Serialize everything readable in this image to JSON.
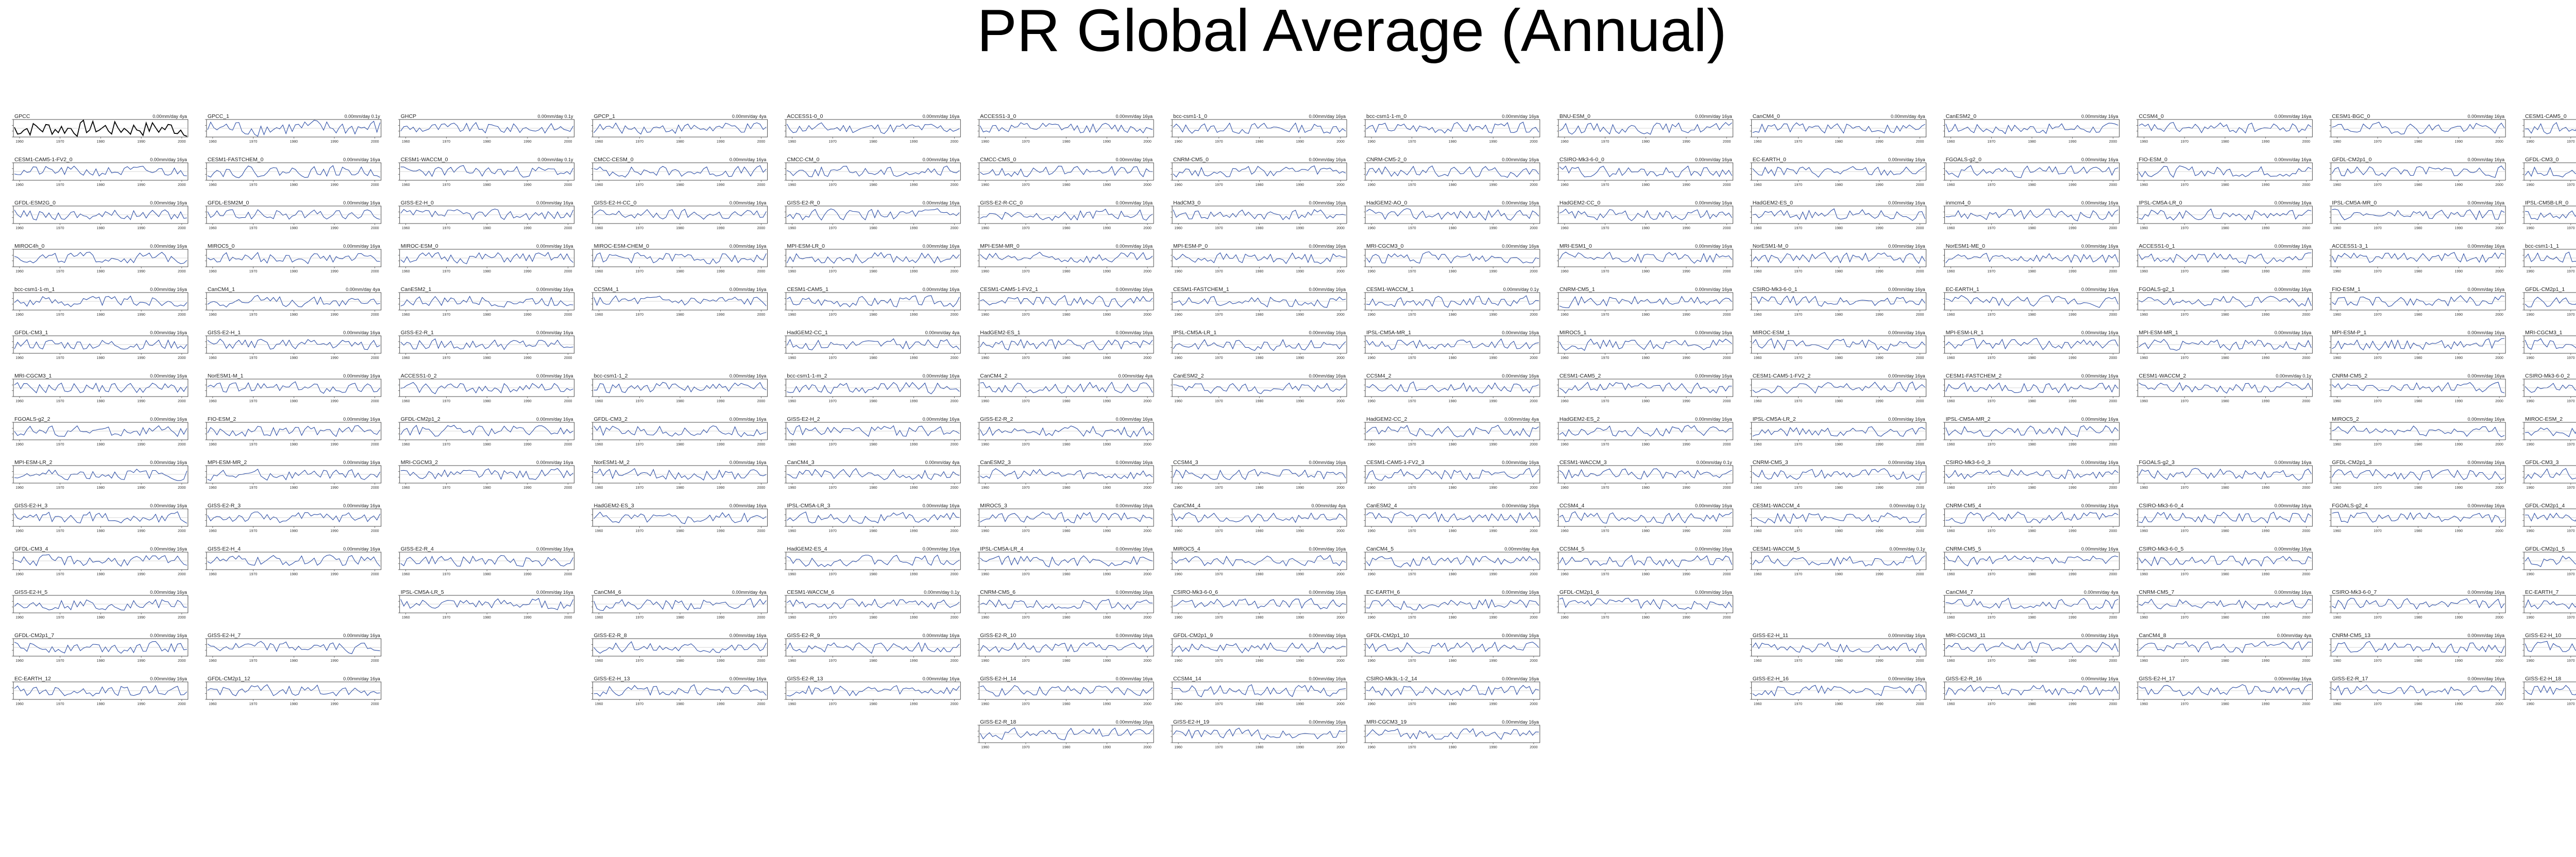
{
  "page": {
    "title": "PR Global Average (Annual)"
  },
  "style": {
    "obs_color": "#000000",
    "model_color": "#2b4da6",
    "axis_color": "#222222"
  },
  "chart_data": {
    "type": "line",
    "title": "PR Global Average (Annual)",
    "layout": {
      "columns": 14,
      "rows": 17
    },
    "x_tick_labels": [
      "1960",
      "1970",
      "1980",
      "1990",
      "2000"
    ],
    "panel_tick_text": {
      "rows_1_13": "1960 1970 1980 1990 2000",
      "last_panel": "1850 1900 1950 2000"
    },
    "panels": [
      {
        "name": "GPCC",
        "unit": "0.00mm/day 4ya"
      },
      {
        "name": "GPCC_1",
        "unit": "0.00mm/day 0.1y"
      },
      {
        "name": "GHCP",
        "unit": "0.00mm/day 0.1y"
      },
      {
        "name": "GPCP_1",
        "unit": "0.00mm/day 4ya"
      },
      {
        "name": "ACCESS1-0_0",
        "unit": "0.00mm/day 16ya"
      },
      {
        "name": "ACCESS1-3_0",
        "unit": "0.00mm/day 16ya"
      },
      {
        "name": "bcc-csm1-1_0",
        "unit": "0.00mm/day 16ya"
      },
      {
        "name": "bcc-csm1-1-m_0",
        "unit": "0.00mm/day 16ya"
      },
      {
        "name": "BNU-ESM_0",
        "unit": "0.00mm/day 16ya"
      },
      {
        "name": "CanCM4_0",
        "unit": "0.00mm/day 4ya"
      },
      {
        "name": "CanESM2_0",
        "unit": "0.00mm/day 16ya"
      },
      {
        "name": "CCSM4_0",
        "unit": "0.00mm/day 16ya"
      },
      {
        "name": "CESM1-BGC_0",
        "unit": "0.00mm/day 16ya"
      },
      {
        "name": "CESM1-CAM5_0",
        "unit": "0.00mm/day 16ya"
      },
      {
        "name": "CESM1-CAM5-1-FV2_0",
        "unit": "0.00mm/day 16ya"
      },
      {
        "name": "CESM1-FASTCHEM_0",
        "unit": "0.00mm/day 16ya"
      },
      {
        "name": "CESM1-WACCM_0",
        "unit": "0.00mm/day 0.1y"
      },
      {
        "name": "CMCC-CESM_0",
        "unit": "0.00mm/day 16ya"
      },
      {
        "name": "CMCC-CM_0",
        "unit": "0.00mm/day 16ya"
      },
      {
        "name": "CMCC-CMS_0",
        "unit": "0.00mm/day 16ya"
      },
      {
        "name": "CNRM-CM5_0",
        "unit": "0.00mm/day 16ya"
      },
      {
        "name": "CNRM-CM5-2_0",
        "unit": "0.00mm/day 16ya"
      },
      {
        "name": "CSIRO-Mk3-6-0_0",
        "unit": "0.00mm/day 16ya"
      },
      {
        "name": "EC-EARTH_0",
        "unit": "0.00mm/day 16ya"
      },
      {
        "name": "FGOALS-g2_0",
        "unit": "0.00mm/day 16ya"
      },
      {
        "name": "FIO-ESM_0",
        "unit": "0.00mm/day 16ya"
      },
      {
        "name": "GFDL-CM2p1_0",
        "unit": "0.00mm/day 16ya"
      },
      {
        "name": "GFDL-CM3_0",
        "unit": "0.00mm/day 16ya"
      },
      {
        "name": "GFDL-ESM2G_0",
        "unit": "0.00mm/day 16ya"
      },
      {
        "name": "GFDL-ESM2M_0",
        "unit": "0.00mm/day 16ya"
      },
      {
        "name": "GISS-E2-H_0",
        "unit": "0.00mm/day 16ya"
      },
      {
        "name": "GISS-E2-H-CC_0",
        "unit": "0.00mm/day 16ya"
      },
      {
        "name": "GISS-E2-R_0",
        "unit": "0.00mm/day 16ya"
      },
      {
        "name": "GISS-E2-R-CC_0",
        "unit": "0.00mm/day 16ya"
      },
      {
        "name": "HadCM3_0",
        "unit": "0.00mm/day 16ya"
      },
      {
        "name": "HadGEM2-AO_0",
        "unit": "0.00mm/day 16ya"
      },
      {
        "name": "HadGEM2-CC_0",
        "unit": "0.00mm/day 16ya"
      },
      {
        "name": "HadGEM2-ES_0",
        "unit": "0.00mm/day 16ya"
      },
      {
        "name": "inmcm4_0",
        "unit": "0.00mm/day 16ya"
      },
      {
        "name": "IPSL-CM5A-LR_0",
        "unit": "0.00mm/day 16ya"
      },
      {
        "name": "IPSL-CM5A-MR_0",
        "unit": "0.00mm/day 16ya"
      },
      {
        "name": "IPSL-CM5B-LR_0",
        "unit": "0.00mm/day 16ya"
      },
      {
        "name": "MIROC4h_0",
        "unit": "0.00mm/day 16ya"
      },
      {
        "name": "MIROC5_0",
        "unit": "0.00mm/day 16ya"
      },
      {
        "name": "MIROC-ESM_0",
        "unit": "0.00mm/day 16ya"
      },
      {
        "name": "MIROC-ESM-CHEM_0",
        "unit": "0.00mm/day 16ya"
      },
      {
        "name": "MPI-ESM-LR_0",
        "unit": "0.00mm/day 16ya"
      },
      {
        "name": "MPI-ESM-MR_0",
        "unit": "0.00mm/day 16ya"
      },
      {
        "name": "MPI-ESM-P_0",
        "unit": "0.00mm/day 16ya"
      },
      {
        "name": "MRI-CGCM3_0",
        "unit": "0.00mm/day 16ya"
      },
      {
        "name": "MRI-ESM1_0",
        "unit": "0.00mm/day 16ya"
      },
      {
        "name": "NorESM1-M_0",
        "unit": "0.00mm/day 16ya"
      },
      {
        "name": "NorESM1-ME_0",
        "unit": "0.00mm/day 16ya"
      },
      {
        "name": "ACCESS1-0_1",
        "unit": "0.00mm/day 16ya"
      },
      {
        "name": "ACCESS1-3_1",
        "unit": "0.00mm/day 16ya"
      },
      {
        "name": "bcc-csm1-1_1",
        "unit": "0.00mm/day 16ya"
      },
      {
        "name": "bcc-csm1-1-m_1",
        "unit": "0.00mm/day 16ya"
      },
      {
        "name": "CanCM4_1",
        "unit": "0.00mm/day 4ya"
      },
      {
        "name": "CanESM2_1",
        "unit": "0.00mm/day 16ya"
      },
      {
        "name": "CCSM4_1",
        "unit": "0.00mm/day 16ya"
      },
      {
        "name": "CESM1-CAM5_1",
        "unit": "0.00mm/day 16ya"
      },
      {
        "name": "CESM1-CAM5-1-FV2_1",
        "unit": "0.00mm/day 16ya"
      },
      {
        "name": "CESM1-FASTCHEM_1",
        "unit": "0.00mm/day 16ya"
      },
      {
        "name": "CESM1-WACCM_1",
        "unit": "0.00mm/day 0.1y"
      },
      {
        "name": "CNRM-CM5_1",
        "unit": "0.00mm/day 16ya"
      },
      {
        "name": "CSIRO-Mk3-6-0_1",
        "unit": "0.00mm/day 16ya"
      },
      {
        "name": "EC-EARTH_1",
        "unit": "0.00mm/day 16ya"
      },
      {
        "name": "FGOALS-g2_1",
        "unit": "0.00mm/day 16ya"
      },
      {
        "name": "FIO-ESM_1",
        "unit": "0.00mm/day 16ya"
      },
      {
        "name": "GFDL-CM2p1_1",
        "unit": "0.00mm/day 16ya"
      },
      {
        "name": "GFDL-CM3_1",
        "unit": "0.00mm/day 16ya"
      },
      {
        "name": "GISS-E2-H_1",
        "unit": "0.00mm/day 16ya"
      },
      {
        "name": "GISS-E2-R_1",
        "unit": "0.00mm/day 16ya"
      },
      null,
      {
        "name": "HadGEM2-CC_1",
        "unit": "0.00mm/day 4ya"
      },
      {
        "name": "HadGEM2-ES_1",
        "unit": "0.00mm/day 16ya"
      },
      {
        "name": "IPSL-CM5A-LR_1",
        "unit": "0.00mm/day 16ya"
      },
      {
        "name": "IPSL-CM5A-MR_1",
        "unit": "0.00mm/day 16ya"
      },
      {
        "name": "MIROC5_1",
        "unit": "0.00mm/day 16ya"
      },
      {
        "name": "MIROC-ESM_1",
        "unit": "0.00mm/day 16ya"
      },
      {
        "name": "MPI-ESM-LR_1",
        "unit": "0.00mm/day 16ya"
      },
      {
        "name": "MPI-ESM-MR_1",
        "unit": "0.00mm/day 16ya"
      },
      {
        "name": "MPI-ESM-P_1",
        "unit": "0.00mm/day 16ya"
      },
      {
        "name": "MRI-CGCM3_1",
        "unit": "0.00mm/day 16ya"
      },
      {
        "name": "MRI-CGCM3_1",
        "unit": "0.00mm/day 16ya"
      },
      {
        "name": "NorESM1-M_1",
        "unit": "0.00mm/day 16ya"
      },
      {
        "name": "ACCESS1-0_2",
        "unit": "0.00mm/day 16ya"
      },
      {
        "name": "bcc-csm1-1_2",
        "unit": "0.00mm/day 16ya"
      },
      {
        "name": "bcc-csm1-1-m_2",
        "unit": "0.00mm/day 16ya"
      },
      {
        "name": "CanCM4_2",
        "unit": "0.00mm/day 4ya"
      },
      {
        "name": "CanESM2_2",
        "unit": "0.00mm/day 16ya"
      },
      {
        "name": "CCSM4_2",
        "unit": "0.00mm/day 16ya"
      },
      {
        "name": "CESM1-CAM5_2",
        "unit": "0.00mm/day 16ya"
      },
      {
        "name": "CESM1-CAM5-1-FV2_2",
        "unit": "0.00mm/day 16ya"
      },
      {
        "name": "CESM1-FASTCHEM_2",
        "unit": "0.00mm/day 16ya"
      },
      {
        "name": "CESM1-WACCM_2",
        "unit": "0.00mm/day 0.1y"
      },
      {
        "name": "CNRM-CM5_2",
        "unit": "0.00mm/day 16ya"
      },
      {
        "name": "CSIRO-Mk3-6-0_2",
        "unit": "0.00mm/day 16ya"
      },
      {
        "name": "FGOALS-g2_2",
        "unit": "0.00mm/day 16ya"
      },
      {
        "name": "FIO-ESM_2",
        "unit": "0.00mm/day 16ya"
      },
      {
        "name": "GFDL-CM2p1_2",
        "unit": "0.00mm/day 16ya"
      },
      {
        "name": "GFDL-CM3_2",
        "unit": "0.00mm/day 16ya"
      },
      {
        "name": "GISS-E2-H_2",
        "unit": "0.00mm/day 16ya"
      },
      {
        "name": "GISS-E2-R_2",
        "unit": "0.00mm/day 16ya"
      },
      null,
      {
        "name": "HadGEM2-CC_2",
        "unit": "0.00mm/day 4ya"
      },
      {
        "name": "HadGEM2-ES_2",
        "unit": "0.00mm/day 16ya"
      },
      {
        "name": "IPSL-CM5A-LR_2",
        "unit": "0.00mm/day 16ya"
      },
      {
        "name": "IPSL-CM5A-MR_2",
        "unit": "0.00mm/day 16ya"
      },
      null,
      {
        "name": "MIROC5_2",
        "unit": "0.00mm/day 16ya"
      },
      {
        "name": "MIROC-ESM_2",
        "unit": "0.00mm/day 16ya"
      },
      {
        "name": "MPI-ESM-LR_2",
        "unit": "0.00mm/day 16ya"
      },
      {
        "name": "MPI-ESM-MR_2",
        "unit": "0.00mm/day 16ya"
      },
      {
        "name": "MRI-CGCM3_2",
        "unit": "0.00mm/day 16ya"
      },
      {
        "name": "NorESM1-M_2",
        "unit": "0.00mm/day 16ya"
      },
      {
        "name": "CanCM4_3",
        "unit": "0.00mm/day 4ya"
      },
      {
        "name": "CanESM2_3",
        "unit": "0.00mm/day 16ya"
      },
      {
        "name": "CCSM4_3",
        "unit": "0.00mm/day 16ya"
      },
      {
        "name": "CESM1-CAM5-1-FV2_3",
        "unit": "0.00mm/day 16ya"
      },
      {
        "name": "CESM1-WACCM_3",
        "unit": "0.00mm/day 0.1y"
      },
      {
        "name": "CNRM-CM5_3",
        "unit": "0.00mm/day 16ya"
      },
      {
        "name": "CSIRO-Mk3-6-0_3",
        "unit": "0.00mm/day 16ya"
      },
      {
        "name": "FGOALS-g2_3",
        "unit": "0.00mm/day 16ya"
      },
      {
        "name": "GFDL-CM2p1_3",
        "unit": "0.00mm/day 16ya"
      },
      {
        "name": "GFDL-CM3_3",
        "unit": "0.00mm/day 16ya"
      },
      {
        "name": "GISS-E2-H_3",
        "unit": "0.00mm/day 16ya"
      },
      {
        "name": "GISS-E2-R_3",
        "unit": "0.00mm/day 16ya"
      },
      null,
      {
        "name": "HadGEM2-ES_3",
        "unit": "0.00mm/day 16ya"
      },
      {
        "name": "IPSL-CM5A-LR_3",
        "unit": "0.00mm/day 16ya"
      },
      {
        "name": "MIROC5_3",
        "unit": "0.00mm/day 16ya"
      },
      {
        "name": "CanCM4_4",
        "unit": "0.00mm/day 4ya"
      },
      {
        "name": "CanESM2_4",
        "unit": "0.00mm/day 16ya"
      },
      {
        "name": "CCSM4_4",
        "unit": "0.00mm/day 16ya"
      },
      {
        "name": "CESM1-WACCM_4",
        "unit": "0.00mm/day 0.1y"
      },
      {
        "name": "CNRM-CM5_4",
        "unit": "0.00mm/day 16ya"
      },
      {
        "name": "CSIRO-Mk3-6-0_4",
        "unit": "0.00mm/day 16ya"
      },
      {
        "name": "FGOALS-g2_4",
        "unit": "0.00mm/day 16ya"
      },
      {
        "name": "GFDL-CM2p1_4",
        "unit": "0.00mm/day 16ya"
      },
      {
        "name": "GFDL-CM3_4",
        "unit": "0.00mm/day 16ya"
      },
      {
        "name": "GISS-E2-H_4",
        "unit": "0.00mm/day 16ya"
      },
      {
        "name": "GISS-E2-R_4",
        "unit": "0.00mm/day 16ya"
      },
      null,
      {
        "name": "HadGEM2-ES_4",
        "unit": "0.00mm/day 16ya"
      },
      {
        "name": "IPSL-CM5A-LR_4",
        "unit": "0.00mm/day 16ya"
      },
      {
        "name": "MIROC5_4",
        "unit": "0.00mm/day 16ya"
      },
      {
        "name": "CanCM4_5",
        "unit": "0.00mm/day 4ya"
      },
      {
        "name": "CCSM4_5",
        "unit": "0.00mm/day 16ya"
      },
      {
        "name": "CESM1-WACCM_5",
        "unit": "0.00mm/day 0.1y"
      },
      {
        "name": "CNRM-CM5_5",
        "unit": "0.00mm/day 16ya"
      },
      {
        "name": "CSIRO-Mk3-6-0_5",
        "unit": "0.00mm/day 16ya"
      },
      null,
      {
        "name": "GFDL-CM2p1_5",
        "unit": "0.00mm/day 16ya"
      },
      {
        "name": "GISS-E2-H_5",
        "unit": "0.00mm/day 16ya"
      },
      null,
      {
        "name": "IPSL-CM5A-LR_5",
        "unit": "0.00mm/day 16ya"
      },
      {
        "name": "CanCM4_6",
        "unit": "0.00mm/day 4ya"
      },
      {
        "name": "CESM1-WACCM_6",
        "unit": "0.00mm/day 0.1y"
      },
      {
        "name": "CNRM-CM5_6",
        "unit": "0.00mm/day 16ya"
      },
      {
        "name": "CSIRO-Mk3-6-0_6",
        "unit": "0.00mm/day 16ya"
      },
      {
        "name": "EC-EARTH_6",
        "unit": "0.00mm/day 16ya"
      },
      {
        "name": "GFDL-CM2p1_6",
        "unit": "0.00mm/day 16ya"
      },
      null,
      {
        "name": "CanCM4_7",
        "unit": "0.00mm/day 4ya"
      },
      {
        "name": "CNRM-CM5_7",
        "unit": "0.00mm/day 16ya"
      },
      {
        "name": "CSIRO-Mk3-6-0_7",
        "unit": "0.00mm/day 16ya"
      },
      {
        "name": "EC-EARTH_7",
        "unit": "0.00mm/day 16ya"
      },
      {
        "name": "GFDL-CM2p1_7",
        "unit": "0.00mm/day 16ya"
      },
      {
        "name": "GISS-E2-H_7",
        "unit": "0.00mm/day 16ya"
      },
      null,
      {
        "name": "GISS-E2-R_8",
        "unit": "0.00mm/day 16ya"
      },
      {
        "name": "GISS-E2-R_9",
        "unit": "0.00mm/day 16ya"
      },
      {
        "name": "GISS-E2-R_10",
        "unit": "0.00mm/day 16ya"
      },
      {
        "name": "GFDL-CM2p1_9",
        "unit": "0.00mm/day 16ya"
      },
      {
        "name": "GFDL-CM2p1_10",
        "unit": "0.00mm/day 16ya"
      },
      null,
      {
        "name": "GISS-E2-H_11",
        "unit": "0.00mm/day 16ya"
      },
      {
        "name": "MRI-CGCM3_11",
        "unit": "0.00mm/day 16ya"
      },
      {
        "name": "CanCM4_8",
        "unit": "0.00mm/day 4ya"
      },
      {
        "name": "CNRM-CM5_13",
        "unit": "0.00mm/day 16ya"
      },
      {
        "name": "GISS-E2-H_10",
        "unit": "0.00mm/day 16ya"
      },
      {
        "name": "EC-EARTH_12",
        "unit": "0.00mm/day 16ya"
      },
      {
        "name": "GFDL-CM2p1_12",
        "unit": "0.00mm/day 16ya"
      },
      null,
      {
        "name": "GISS-E2-H_13",
        "unit": "0.00mm/day 16ya"
      },
      {
        "name": "GISS-E2-R_13",
        "unit": "0.00mm/day 16ya"
      },
      {
        "name": "GISS-E2-H_14",
        "unit": "0.00mm/day 16ya"
      },
      {
        "name": "CCSM4_14",
        "unit": "0.00mm/day 16ya"
      },
      {
        "name": "CSIRO-Mk3L-1-2_14",
        "unit": "0.00mm/day 16ya"
      },
      null,
      {
        "name": "GISS-E2-H_16",
        "unit": "0.00mm/day 16ya"
      },
      {
        "name": "GISS-E2-R_16",
        "unit": "0.00mm/day 16ya"
      },
      {
        "name": "GISS-E2-H_17",
        "unit": "0.00mm/day 16ya"
      },
      {
        "name": "GISS-E2-R_17",
        "unit": "0.00mm/day 16ya"
      },
      {
        "name": "GISS-E2-H_18",
        "unit": "0.00mm/day 16ya"
      },
      null,
      null,
      null,
      null,
      null,
      {
        "name": "GISS-E2-R_18",
        "unit": "0.00mm/day 16ya"
      },
      {
        "name": "GISS-E2-H_19",
        "unit": "0.00mm/day 16ya"
      },
      {
        "name": "MRI-CGCM3_19",
        "unit": "0.00mm/day 16ya"
      },
      null,
      null,
      null,
      null,
      null,
      null
    ]
  }
}
